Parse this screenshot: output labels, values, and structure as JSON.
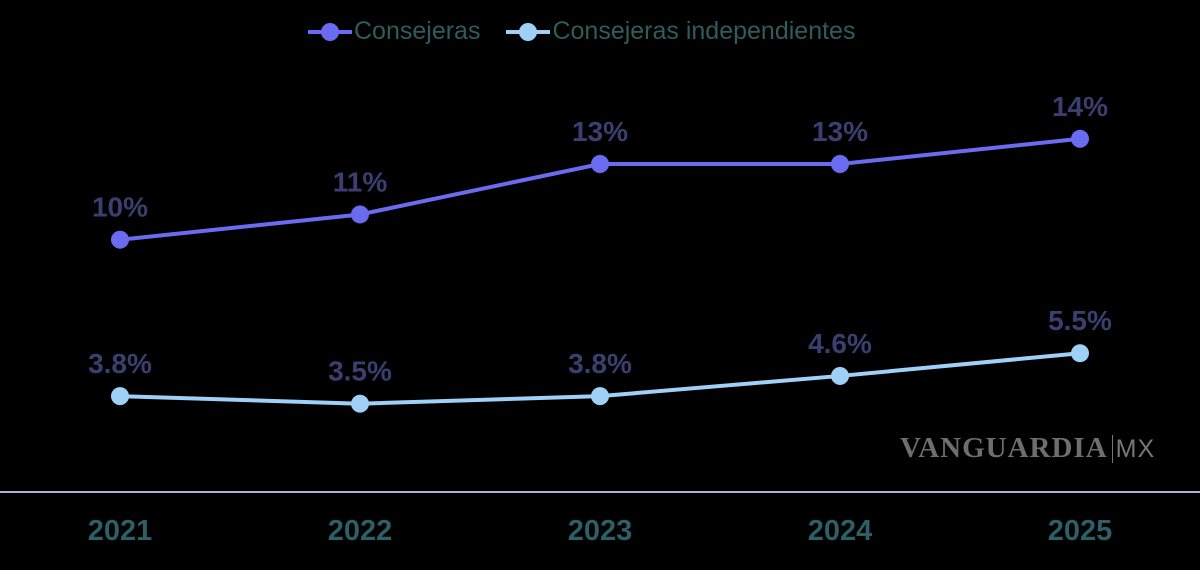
{
  "chart_data": {
    "type": "line",
    "categories": [
      "2021",
      "2022",
      "2023",
      "2024",
      "2025"
    ],
    "series": [
      {
        "name": "Consejeras",
        "values": [
          10,
          11,
          13,
          13,
          14
        ],
        "labels": [
          "10%",
          "11%",
          "13%",
          "13%",
          "14%"
        ],
        "color": "#6b6bf2"
      },
      {
        "name": "Consejeras independientes",
        "values": [
          3.8,
          3.5,
          3.8,
          4.6,
          5.5
        ],
        "labels": [
          "3.8%",
          "3.5%",
          "3.8%",
          "4.6%",
          "5.5%"
        ],
        "color": "#9fd0f7"
      }
    ],
    "ylim": [
      0,
      19.5
    ],
    "grid": false,
    "legend": "top-center",
    "colors": {
      "data_label": "#3b3f70",
      "axis_label": "#2f5f66",
      "legend_text": "#2f5c5a",
      "axis_line": "#aab0e0"
    }
  },
  "watermark": {
    "brand": "VANGUARDIA",
    "suffix": "MX"
  }
}
